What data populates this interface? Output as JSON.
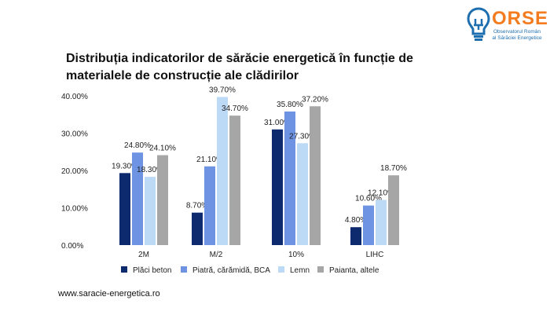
{
  "logo": {
    "wordmark": "ORSE",
    "subtitle_line1": "Observatorul Român",
    "subtitle_line2": "al Sărăciei Energetice",
    "icon": "lightbulb-plug-icon",
    "colors": {
      "wordmark": "#f47c20",
      "icon": "#1e6fb0"
    }
  },
  "footer": {
    "url": "www.saracie-energetica.ro"
  },
  "chart_data": {
    "type": "bar",
    "title": "Distribuția indicatorilor de sărăcie energetică în funcție de materialele de construcție ale clădirilor",
    "categories": [
      "2M",
      "M/2",
      "10%",
      "LIHC"
    ],
    "series": [
      {
        "name": "Plăci beton",
        "color": "#0d2a6e",
        "values": [
          19.3,
          8.7,
          31.0,
          4.8
        ],
        "labels": [
          "19.30%",
          "8.70%",
          "31.00%",
          "4.80%"
        ]
      },
      {
        "name": "Piatră, cărămidă, BCA",
        "color": "#6f93e3",
        "values": [
          24.8,
          21.1,
          35.8,
          10.6
        ],
        "labels": [
          "24.80%",
          "21.10%",
          "35.80%",
          "10.60%"
        ]
      },
      {
        "name": "Lemn",
        "color": "#bcd9f5",
        "values": [
          18.3,
          39.7,
          27.3,
          12.1
        ],
        "labels": [
          "18.30%",
          "39.70%",
          "27.30%",
          "12.10%"
        ]
      },
      {
        "name": "Paianta, altele",
        "color": "#a6a6a6",
        "values": [
          24.1,
          34.7,
          37.2,
          18.7
        ],
        "labels": [
          "24.10%",
          "34.70%",
          "37.20%",
          "18.70%"
        ]
      }
    ],
    "yticks": [
      "0.00%",
      "10.00%",
      "20.00%",
      "30.00%",
      "40.00%"
    ],
    "ytick_values": [
      0,
      10,
      20,
      30,
      40
    ],
    "ylim": [
      0,
      40
    ],
    "grid": false,
    "legend_position": "bottom"
  }
}
